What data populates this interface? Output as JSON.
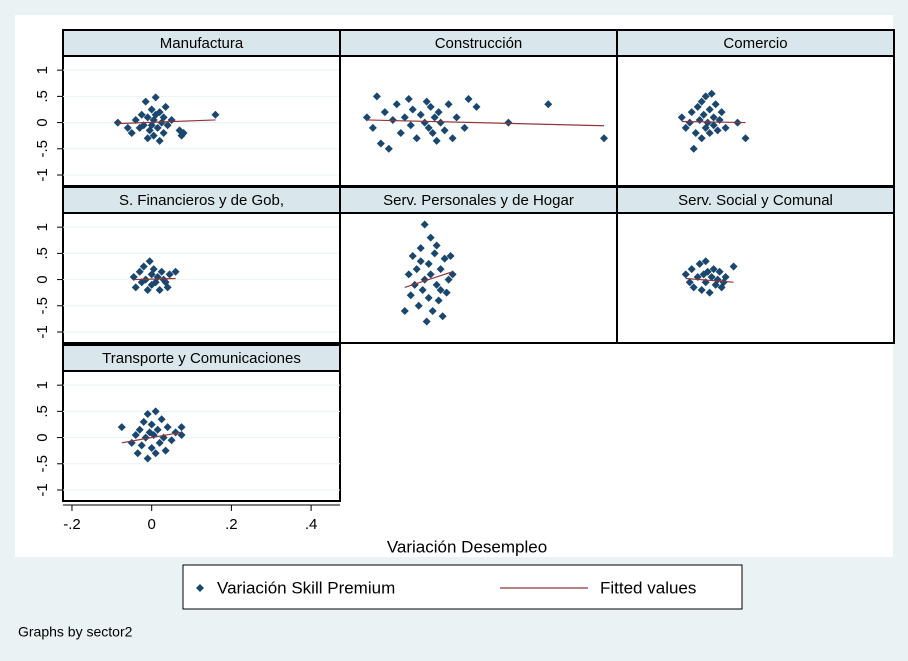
{
  "figure": {
    "xlabel": "Variación Desempleo",
    "note": "Graphs by sector2",
    "xlim": [
      -0.2225,
      0.4725
    ],
    "ylim": [
      -1.21,
      1.27
    ],
    "xticks": [
      {
        "value": -0.2,
        "label": "-.2"
      },
      0,
      {
        "value": 0.2,
        "label": ".2"
      },
      {
        "value": 0.4,
        "label": ".4"
      }
    ],
    "yticks": [
      -1,
      {
        "value": -0.5,
        "label": "-.5"
      },
      0,
      {
        "value": 0.5,
        "label": ".5"
      },
      1
    ],
    "legend": [
      {
        "name": "Variación Skill Premium",
        "color": "#1a476f"
      },
      {
        "name": "Fitted values",
        "color": "#90353b"
      }
    ]
  },
  "chart_data": [
    {
      "type": "scatter",
      "title": "Manufactura",
      "points": {
        "x": [
          -0.085,
          -0.05,
          -0.04,
          -0.03,
          -0.025,
          -0.02,
          -0.015,
          -0.01,
          -0.01,
          -0.005,
          0,
          0,
          0.005,
          0.005,
          0.01,
          0.01,
          0.015,
          0.02,
          0.02,
          0.025,
          0.03,
          0.03,
          0.035,
          0.04,
          0.05,
          0.07,
          0.075,
          0.08,
          0.16,
          -0.06
        ],
        "y": [
          0.0,
          -0.2,
          0.05,
          -0.1,
          0.15,
          -0.05,
          0.4,
          -0.3,
          0.1,
          -0.15,
          0.25,
          -0.05,
          0.05,
          -0.25,
          0.48,
          0.15,
          -0.1,
          0.2,
          -0.35,
          0.0,
          0.1,
          -0.2,
          0.3,
          -0.05,
          0.05,
          -0.15,
          -0.25,
          -0.2,
          0.15,
          -0.1
        ]
      },
      "fit": {
        "x": [
          -0.085,
          0.16
        ],
        "y": [
          -0.02,
          0.05
        ]
      }
    },
    {
      "type": "scatter",
      "title": "Construcción",
      "points": {
        "x": [
          -0.155,
          -0.14,
          -0.13,
          -0.12,
          -0.11,
          -0.1,
          -0.09,
          -0.08,
          -0.07,
          -0.06,
          -0.05,
          -0.045,
          -0.04,
          -0.03,
          -0.02,
          -0.01,
          -0.005,
          0,
          0.005,
          0.01,
          0.015,
          0.02,
          0.025,
          0.03,
          0.04,
          0.05,
          0.06,
          0.07,
          0.09,
          0.1,
          0.12,
          0.2,
          0.3,
          0.44
        ],
        "y": [
          0.1,
          -0.1,
          0.5,
          -0.4,
          0.2,
          -0.5,
          0.05,
          0.35,
          -0.2,
          0.1,
          0.45,
          -0.05,
          0.25,
          -0.3,
          0.15,
          0.0,
          0.4,
          -0.1,
          0.3,
          -0.2,
          0.1,
          -0.35,
          0.2,
          0.0,
          -0.15,
          0.35,
          -0.3,
          0.1,
          -0.1,
          0.45,
          0.3,
          0.0,
          0.35,
          -0.3
        ]
      },
      "fit": {
        "x": [
          -0.155,
          0.44
        ],
        "y": [
          0.05,
          -0.06
        ]
      }
    },
    {
      "type": "scatter",
      "title": "Comercio",
      "points": {
        "x": [
          -0.06,
          -0.05,
          -0.04,
          -0.035,
          -0.03,
          -0.025,
          -0.02,
          -0.015,
          -0.01,
          -0.01,
          -0.005,
          0,
          0,
          0.005,
          0.01,
          0.01,
          0.015,
          0.02,
          0.02,
          0.025,
          0.03,
          0.035,
          0.04,
          0.05,
          0.08,
          0.1
        ],
        "y": [
          0.1,
          -0.1,
          0.0,
          0.2,
          -0.5,
          -0.2,
          0.3,
          0.05,
          -0.3,
          0.4,
          0.15,
          -0.1,
          0.5,
          0.0,
          0.25,
          -0.2,
          0.55,
          0.1,
          -0.05,
          0.35,
          -0.15,
          0.05,
          0.2,
          -0.1,
          0.0,
          -0.3
        ]
      },
      "fit": {
        "x": [
          -0.06,
          0.1
        ],
        "y": [
          0.02,
          0.0
        ]
      }
    },
    {
      "type": "scatter",
      "title": "S. Financieros y de Gob,",
      "points": {
        "x": [
          -0.045,
          -0.04,
          -0.03,
          -0.025,
          -0.02,
          -0.015,
          -0.01,
          -0.005,
          0,
          0,
          0.005,
          0.01,
          0.015,
          0.02,
          0.025,
          0.03,
          0.04,
          0.045,
          0.06,
          0.035
        ],
        "y": [
          0.05,
          -0.15,
          0.15,
          -0.05,
          0.25,
          0.0,
          -0.2,
          0.35,
          0.1,
          -0.1,
          0.2,
          -0.05,
          0.05,
          -0.2,
          0.15,
          0.0,
          -0.15,
          0.1,
          0.15,
          -0.05
        ]
      },
      "fit": {
        "x": [
          -0.045,
          0.06
        ],
        "y": [
          0.0,
          0.02
        ]
      }
    },
    {
      "type": "scatter",
      "title": "Serv. Personales y de Hogar",
      "points": {
        "x": [
          -0.06,
          -0.05,
          -0.045,
          -0.04,
          -0.035,
          -0.03,
          -0.025,
          -0.02,
          -0.015,
          -0.01,
          -0.01,
          -0.005,
          0,
          0,
          0.005,
          0.005,
          0.01,
          0.015,
          0.02,
          0.02,
          0.025,
          0.03,
          0.035,
          0.04,
          0.045,
          0.05,
          0.055,
          0.06,
          0.03,
          -0.02
        ],
        "y": [
          -0.6,
          0.1,
          -0.3,
          0.45,
          -0.1,
          0.2,
          -0.5,
          0.6,
          -0.2,
          1.05,
          0.0,
          -0.8,
          0.3,
          -0.35,
          0.8,
          0.1,
          -0.6,
          0.5,
          -0.1,
          0.65,
          -0.4,
          0.2,
          -0.7,
          0.4,
          -0.25,
          0.0,
          0.45,
          0.1,
          -0.2,
          0.35
        ]
      },
      "fit": {
        "x": [
          -0.06,
          0.06
        ],
        "y": [
          -0.15,
          0.15
        ]
      }
    },
    {
      "type": "scatter",
      "title": "Serv. Social y Comunal",
      "points": {
        "x": [
          -0.05,
          -0.04,
          -0.035,
          -0.03,
          -0.02,
          -0.015,
          -0.01,
          -0.005,
          0,
          0,
          0.005,
          0.01,
          0.015,
          0.02,
          0.025,
          0.03,
          0.035,
          0.04,
          0.05,
          0.07,
          0.045
        ],
        "y": [
          0.1,
          -0.05,
          0.2,
          -0.15,
          0.05,
          0.3,
          -0.2,
          0.1,
          -0.05,
          0.35,
          0.15,
          -0.25,
          0.05,
          0.2,
          -0.1,
          0.0,
          0.15,
          -0.15,
          0.05,
          0.25,
          -0.05
        ]
      },
      "fit": {
        "x": [
          -0.05,
          0.07
        ],
        "y": [
          0.02,
          -0.05
        ]
      }
    },
    {
      "type": "scatter",
      "title": "Transporte y Comunicaciones",
      "points": {
        "x": [
          -0.075,
          -0.05,
          -0.04,
          -0.035,
          -0.03,
          -0.025,
          -0.02,
          -0.015,
          -0.01,
          -0.01,
          -0.005,
          0,
          0,
          0.005,
          0.01,
          0.01,
          0.015,
          0.02,
          0.025,
          0.03,
          0.035,
          0.04,
          0.05,
          0.06,
          0.075,
          0.075
        ],
        "y": [
          0.2,
          -0.1,
          0.05,
          -0.3,
          0.15,
          -0.15,
          0.3,
          0.0,
          -0.4,
          0.45,
          0.1,
          -0.2,
          0.25,
          0.05,
          -0.3,
          0.5,
          0.15,
          -0.1,
          0.35,
          0.0,
          -0.25,
          0.2,
          -0.05,
          0.1,
          0.2,
          0.05
        ]
      },
      "fit": {
        "x": [
          -0.075,
          0.075
        ],
        "y": [
          -0.1,
          0.1
        ]
      }
    }
  ]
}
